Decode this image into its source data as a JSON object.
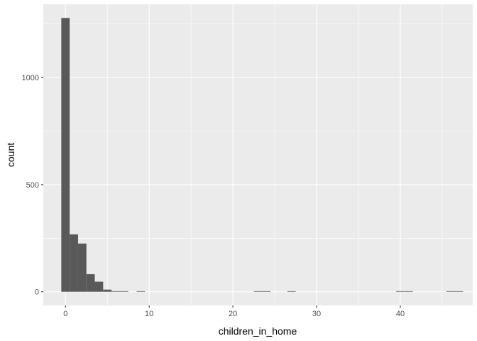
{
  "chart_data": {
    "type": "bar",
    "subtype": "histogram",
    "xlabel": "children_in_home",
    "ylabel": "count",
    "xlim": [
      -2.65,
      48.65
    ],
    "ylim": [
      -64,
      1342
    ],
    "x_ticks": [
      0,
      10,
      20,
      30,
      40
    ],
    "y_ticks": [
      0,
      500,
      1000
    ],
    "x_tick_labels": [
      "0",
      "10",
      "20",
      "30",
      "40"
    ],
    "y_tick_labels": [
      "0",
      "500",
      "1000"
    ],
    "grid": true,
    "bar_color": "#595959",
    "bins": [
      {
        "x0": -0.5,
        "x1": 0.5,
        "count": 1278
      },
      {
        "x0": 0.5,
        "x1": 1.5,
        "count": 268
      },
      {
        "x0": 1.5,
        "x1": 2.5,
        "count": 225
      },
      {
        "x0": 2.5,
        "x1": 3.5,
        "count": 82
      },
      {
        "x0": 3.5,
        "x1": 4.5,
        "count": 47
      },
      {
        "x0": 4.5,
        "x1": 5.5,
        "count": 10
      },
      {
        "x0": 5.5,
        "x1": 6.5,
        "count": 2
      },
      {
        "x0": 6.5,
        "x1": 7.5,
        "count": 2
      },
      {
        "x0": 8.5,
        "x1": 9.5,
        "count": 1
      },
      {
        "x0": 22.5,
        "x1": 23.5,
        "count": 1
      },
      {
        "x0": 23.5,
        "x1": 24.5,
        "count": 1
      },
      {
        "x0": 26.5,
        "x1": 27.5,
        "count": 1
      },
      {
        "x0": 39.5,
        "x1": 40.5,
        "count": 1
      },
      {
        "x0": 40.5,
        "x1": 41.5,
        "count": 1
      },
      {
        "x0": 45.5,
        "x1": 46.5,
        "count": 1
      },
      {
        "x0": 46.5,
        "x1": 47.5,
        "count": 1
      }
    ],
    "colors": {
      "panel_background": "#EBEBEB",
      "grid_major": "#FFFFFF",
      "bar": "#595959",
      "tick_text": "#4D4D4D",
      "tick_mark": "#333333"
    }
  }
}
